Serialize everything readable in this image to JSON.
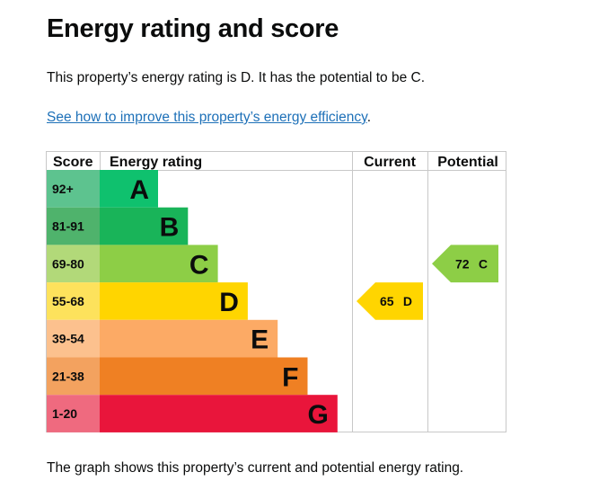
{
  "page": {
    "title": "Energy rating and score",
    "summary": "This property’s energy rating is D. It has the potential to be C.",
    "improve_link": "See how to improve this property’s energy efficiency",
    "improve_suffix": ".",
    "caption": "The graph shows this property’s current and potential energy rating."
  },
  "chart_data": {
    "type": "table",
    "headers": {
      "score": "Score",
      "rating": "Energy rating",
      "current": "Current",
      "potential": "Potential"
    },
    "bands": [
      {
        "score": "92+",
        "letter": "A",
        "color": "#5dc38f",
        "bar_color": "#0fc16e"
      },
      {
        "score": "81-91",
        "letter": "B",
        "color": "#4fb36c",
        "bar_color": "#19b459"
      },
      {
        "score": "69-80",
        "letter": "C",
        "color": "#b2d979",
        "bar_color": "#8dce46"
      },
      {
        "score": "55-68",
        "letter": "D",
        "color": "#fde25c",
        "bar_color": "#ffd500"
      },
      {
        "score": "39-54",
        "letter": "E",
        "color": "#fcc18e",
        "bar_color": "#fcaa65"
      },
      {
        "score": "21-38",
        "letter": "F",
        "color": "#f3a25f",
        "bar_color": "#ef8023"
      },
      {
        "score": "1-20",
        "letter": "G",
        "color": "#ef6a7f",
        "bar_color": "#e9153b"
      }
    ],
    "current": {
      "score": "65",
      "letter": "D",
      "color": "#ffd500"
    },
    "potential": {
      "score": "72",
      "letter": "C",
      "color": "#8dce46"
    }
  }
}
